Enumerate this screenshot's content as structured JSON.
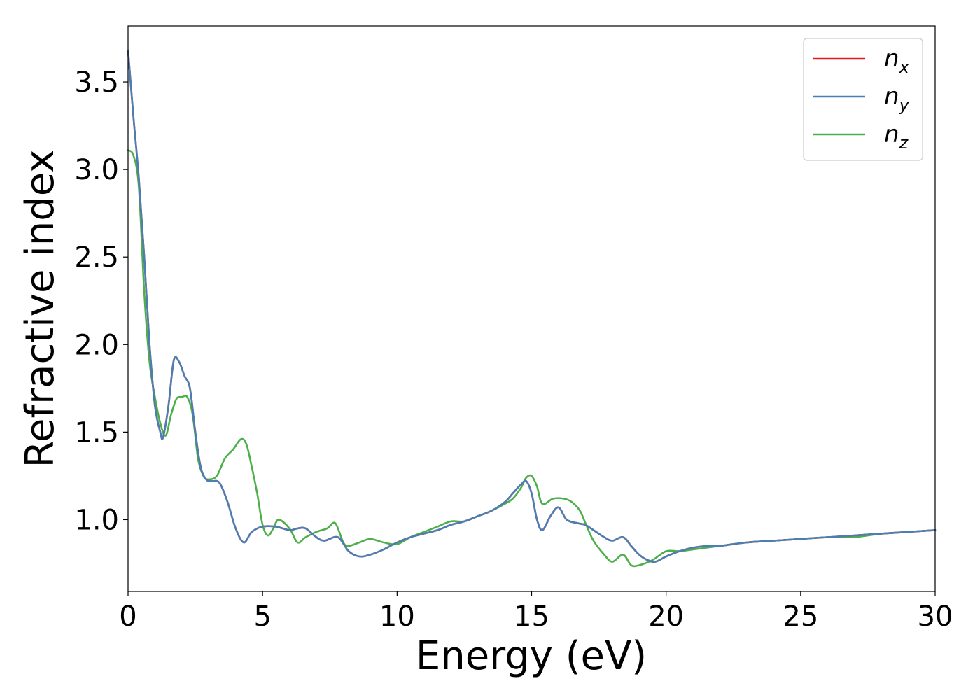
{
  "chart_data": {
    "type": "line",
    "xlabel": "Energy (eV)",
    "ylabel": "Refractive index",
    "xlim": [
      0,
      30
    ],
    "ylim": [
      0.59,
      3.82
    ],
    "xticks": [
      0,
      5,
      10,
      15,
      20,
      25,
      30
    ],
    "yticks": [
      1.0,
      1.5,
      2.0,
      2.5,
      3.0,
      3.5
    ],
    "grid": false,
    "legend_position": "top-right",
    "series": [
      {
        "name": "n_x",
        "label_base": "n",
        "label_sub": "x",
        "color": "#e41a1c",
        "x": [
          0,
          0.2,
          0.4,
          0.6,
          0.8,
          1.0,
          1.2,
          1.3,
          1.5,
          1.7,
          1.9,
          2.1,
          2.3,
          2.5,
          2.7,
          2.9,
          3.1,
          3.4,
          3.7,
          4.0,
          4.3,
          4.6,
          5.0,
          5.5,
          6.0,
          6.3,
          6.6,
          7.0,
          7.3,
          7.8,
          8.2,
          8.6,
          9.0,
          9.5,
          10.0,
          10.5,
          11.0,
          11.5,
          12.0,
          12.5,
          13.0,
          13.5,
          14.0,
          14.3,
          14.6,
          14.8,
          15.0,
          15.2,
          15.4,
          15.7,
          16.0,
          16.3,
          16.7,
          17.0,
          17.3,
          17.7,
          18.0,
          18.4,
          18.7,
          19.0,
          19.3,
          19.6,
          20.0,
          20.5,
          21.0,
          21.5,
          22.0,
          23.0,
          24.0,
          25.0,
          26.0,
          27.0,
          28.0,
          29.0,
          30.0
        ],
        "y": [
          3.68,
          3.3,
          2.95,
          2.5,
          2.0,
          1.65,
          1.5,
          1.47,
          1.65,
          1.91,
          1.9,
          1.82,
          1.75,
          1.5,
          1.3,
          1.23,
          1.22,
          1.21,
          1.1,
          0.95,
          0.87,
          0.93,
          0.96,
          0.96,
          0.94,
          0.95,
          0.95,
          0.9,
          0.88,
          0.9,
          0.82,
          0.79,
          0.8,
          0.83,
          0.87,
          0.9,
          0.92,
          0.94,
          0.97,
          0.99,
          1.02,
          1.05,
          1.1,
          1.15,
          1.2,
          1.22,
          1.15,
          1.0,
          0.94,
          1.02,
          1.07,
          1.0,
          0.98,
          0.97,
          0.94,
          0.9,
          0.88,
          0.9,
          0.85,
          0.8,
          0.77,
          0.76,
          0.79,
          0.82,
          0.84,
          0.85,
          0.85,
          0.87,
          0.88,
          0.89,
          0.9,
          0.91,
          0.92,
          0.93,
          0.94
        ]
      },
      {
        "name": "n_y",
        "label_base": "n",
        "label_sub": "y",
        "color": "#4a7fb5",
        "x": [
          0,
          0.2,
          0.4,
          0.6,
          0.8,
          1.0,
          1.2,
          1.3,
          1.5,
          1.7,
          1.9,
          2.1,
          2.3,
          2.5,
          2.7,
          2.9,
          3.1,
          3.4,
          3.7,
          4.0,
          4.3,
          4.6,
          5.0,
          5.5,
          6.0,
          6.3,
          6.6,
          7.0,
          7.3,
          7.8,
          8.2,
          8.6,
          9.0,
          9.5,
          10.0,
          10.5,
          11.0,
          11.5,
          12.0,
          12.5,
          13.0,
          13.5,
          14.0,
          14.3,
          14.6,
          14.8,
          15.0,
          15.2,
          15.4,
          15.7,
          16.0,
          16.3,
          16.7,
          17.0,
          17.3,
          17.7,
          18.0,
          18.4,
          18.7,
          19.0,
          19.3,
          19.6,
          20.0,
          20.5,
          21.0,
          21.5,
          22.0,
          23.0,
          24.0,
          25.0,
          26.0,
          27.0,
          28.0,
          29.0,
          30.0
        ],
        "y": [
          3.68,
          3.3,
          2.95,
          2.5,
          2.0,
          1.65,
          1.5,
          1.47,
          1.65,
          1.91,
          1.9,
          1.82,
          1.75,
          1.5,
          1.3,
          1.23,
          1.22,
          1.21,
          1.1,
          0.95,
          0.87,
          0.93,
          0.96,
          0.96,
          0.94,
          0.95,
          0.95,
          0.9,
          0.88,
          0.9,
          0.82,
          0.79,
          0.8,
          0.83,
          0.87,
          0.9,
          0.92,
          0.94,
          0.97,
          0.99,
          1.02,
          1.05,
          1.1,
          1.15,
          1.2,
          1.22,
          1.15,
          1.0,
          0.94,
          1.02,
          1.07,
          1.0,
          0.98,
          0.97,
          0.94,
          0.9,
          0.88,
          0.9,
          0.85,
          0.8,
          0.77,
          0.76,
          0.79,
          0.82,
          0.84,
          0.85,
          0.85,
          0.87,
          0.88,
          0.89,
          0.9,
          0.91,
          0.92,
          0.93,
          0.94
        ]
      },
      {
        "name": "n_z",
        "label_base": "n",
        "label_sub": "z",
        "color": "#4daf4a",
        "x": [
          0,
          0.2,
          0.4,
          0.6,
          0.8,
          1.0,
          1.2,
          1.4,
          1.6,
          1.8,
          2.0,
          2.2,
          2.4,
          2.6,
          2.8,
          3.0,
          3.3,
          3.6,
          3.9,
          4.2,
          4.4,
          4.6,
          4.8,
          5.0,
          5.2,
          5.4,
          5.6,
          6.0,
          6.3,
          6.6,
          7.0,
          7.4,
          7.7,
          8.0,
          8.2,
          8.6,
          9.0,
          9.5,
          10.0,
          10.5,
          11.0,
          11.5,
          12.0,
          12.5,
          13.0,
          13.5,
          14.0,
          14.3,
          14.6,
          14.8,
          15.0,
          15.2,
          15.4,
          15.8,
          16.2,
          16.5,
          16.8,
          17.0,
          17.3,
          17.7,
          18.0,
          18.4,
          18.7,
          19.0,
          19.5,
          20.0,
          20.5,
          21.0,
          22.0,
          23.0,
          24.0,
          25.0,
          26.0,
          27.0,
          28.0,
          29.0,
          30.0
        ],
        "y": [
          3.11,
          3.08,
          2.9,
          2.3,
          1.9,
          1.7,
          1.55,
          1.48,
          1.6,
          1.69,
          1.7,
          1.7,
          1.6,
          1.35,
          1.25,
          1.23,
          1.25,
          1.35,
          1.4,
          1.46,
          1.43,
          1.3,
          1.15,
          0.97,
          0.91,
          0.95,
          1.0,
          0.95,
          0.87,
          0.9,
          0.93,
          0.95,
          0.98,
          0.87,
          0.85,
          0.87,
          0.89,
          0.87,
          0.86,
          0.9,
          0.93,
          0.96,
          0.99,
          0.99,
          1.02,
          1.05,
          1.09,
          1.12,
          1.18,
          1.24,
          1.25,
          1.19,
          1.09,
          1.12,
          1.12,
          1.1,
          1.05,
          0.98,
          0.88,
          0.8,
          0.76,
          0.8,
          0.74,
          0.74,
          0.77,
          0.82,
          0.82,
          0.83,
          0.85,
          0.87,
          0.88,
          0.89,
          0.9,
          0.9,
          0.92,
          0.93,
          0.94
        ]
      }
    ]
  }
}
